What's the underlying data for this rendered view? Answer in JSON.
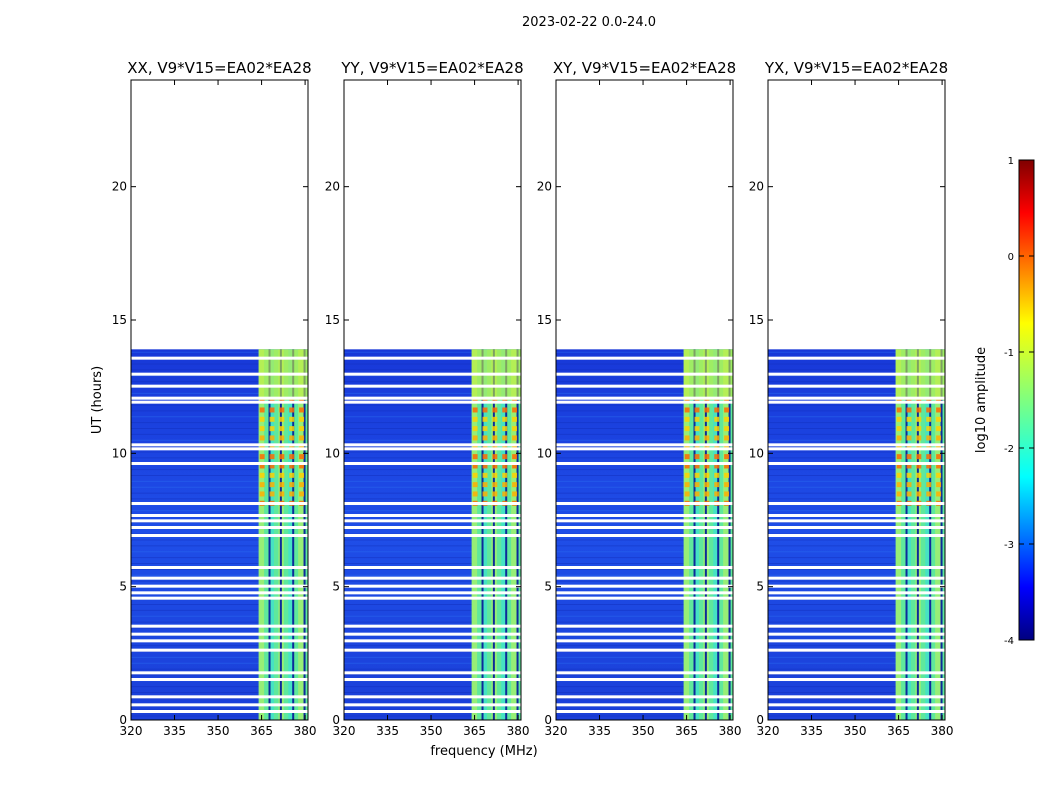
{
  "suptitle": "2023-02-22 0.0-24.0",
  "chart_data": {
    "type": "heatmap",
    "xlabel": "frequency (MHz)",
    "ylabel": "UT (hours)",
    "xlim": [
      320,
      381
    ],
    "ylim": [
      0,
      24
    ],
    "xticks": [
      320,
      335,
      350,
      365,
      380
    ],
    "yticks": [
      0,
      5,
      10,
      15,
      20
    ],
    "data_ut_range": [
      0,
      13.9
    ],
    "band_frequency_range_mhz": [
      364,
      381
    ],
    "flagged_ut_hours": [
      0.3,
      0.55,
      0.85,
      1.5,
      1.75,
      2.6,
      2.95,
      3.2,
      3.5,
      4.55,
      4.75,
      5.0,
      5.3,
      5.7,
      6.9,
      7.2,
      7.45,
      7.65,
      8.1,
      9.6,
      10.15,
      10.3,
      11.9,
      12.05,
      12.5,
      12.95,
      13.55
    ],
    "panels": [
      {
        "title": "XX, V9*V15=EA02*EA28",
        "band_start_mhz": 364
      },
      {
        "title": "YY, V9*V15=EA02*EA28",
        "band_start_mhz": 364
      },
      {
        "title": "XY, V9*V15=EA02*EA28",
        "band_start_mhz": 364
      },
      {
        "title": "YX, V9*V15=EA02*EA28",
        "band_start_mhz": 364
      }
    ],
    "colorbar": {
      "label": "log10 amplitude",
      "range": [
        -4,
        1
      ],
      "ticks": [
        1,
        0,
        -1,
        -2,
        -3,
        -4
      ],
      "colormap": "jet"
    }
  }
}
